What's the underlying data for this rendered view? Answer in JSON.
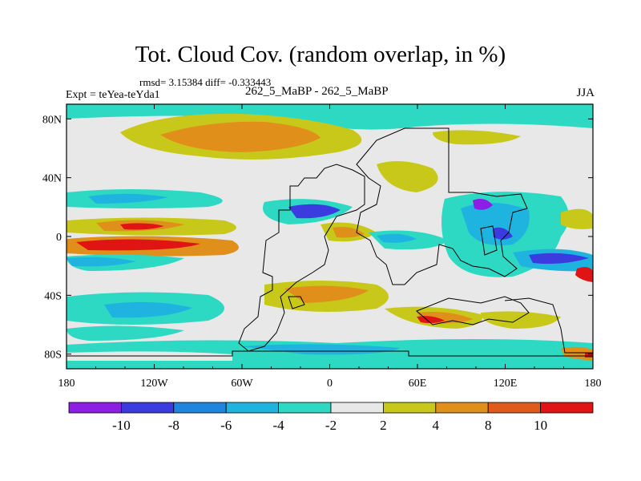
{
  "title": "Tot. Cloud Cov. (random overlap, in %)",
  "stats": "rmsd= 3.15384 diff= -0.333443",
  "experiment": "Expt = teYea-teYda1",
  "case": "262_5_MaBP - 262_5_MaBP",
  "season": "JJA",
  "axes": {
    "x_ticks": [
      "180",
      "120W",
      "60W",
      "0",
      "60E",
      "120E",
      "180"
    ],
    "y_ticks": [
      "80N",
      "40N",
      "0",
      "40S",
      "80S"
    ]
  },
  "colorbar": {
    "labels": [
      "-10",
      "-8",
      "-6",
      "-4",
      "-2",
      "2",
      "4",
      "8",
      "10"
    ],
    "colors": [
      "#8c1ee6",
      "#3b3be0",
      "#1f86e0",
      "#1fb4e0",
      "#2ed9c4",
      "#e8e8e8",
      "#c8c81a",
      "#e0901a",
      "#e05a1a",
      "#e01414"
    ]
  }
}
